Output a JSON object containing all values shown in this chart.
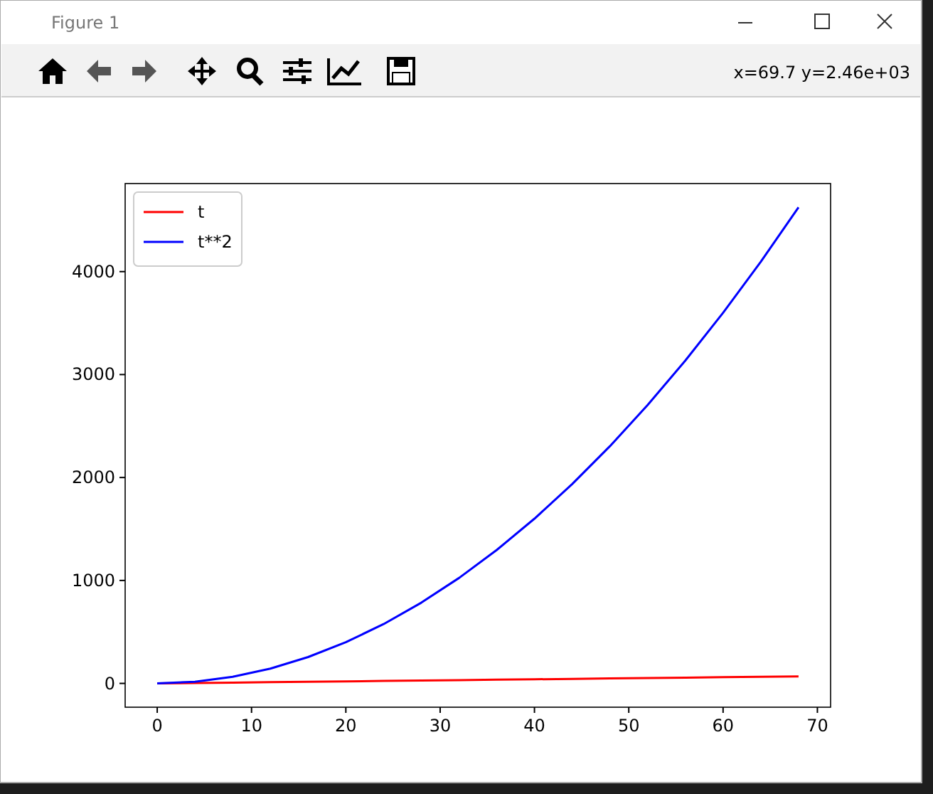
{
  "chart_data": {
    "type": "line",
    "title": "Figure 1",
    "annotations": [
      "x=69.7 y=2.46e+03"
    ],
    "x": [
      0,
      4,
      8,
      12,
      16,
      20,
      24,
      28,
      32,
      36,
      40,
      44,
      48,
      52,
      56,
      60,
      64,
      68
    ],
    "series": [
      {
        "name": "t",
        "color": "#ff0000",
        "values": [
          0,
          4,
          8,
          12,
          16,
          20,
          24,
          28,
          32,
          36,
          40,
          44,
          48,
          52,
          56,
          60,
          64,
          68
        ]
      },
      {
        "name": "t**2",
        "color": "#0000ff",
        "values": [
          0,
          16,
          64,
          144,
          256,
          400,
          576,
          784,
          1024,
          1296,
          1600,
          1936,
          2304,
          2704,
          3136,
          3600,
          4096,
          4624
        ]
      }
    ],
    "xlim": [
      -3.4,
      71.4
    ],
    "ylim": [
      -231.2,
      4855.2
    ],
    "xticks": [
      0,
      10,
      20,
      30,
      40,
      50,
      60,
      70
    ],
    "yticks": [
      0,
      1000,
      2000,
      3000,
      4000
    ],
    "grid": false,
    "legend": "top left"
  }
}
